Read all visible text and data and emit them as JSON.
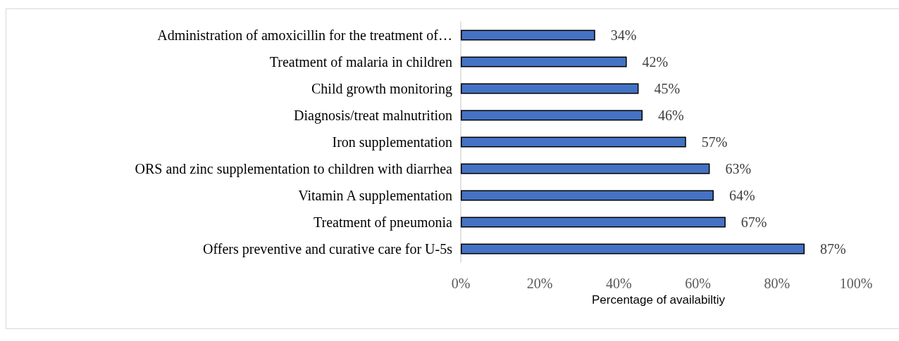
{
  "chart_data": {
    "type": "bar",
    "orientation": "horizontal",
    "categories": [
      "Administration of amoxicillin for the treatment of…",
      "Treatment of malaria in children",
      "Child growth monitoring",
      "Diagnosis/treat malnutrition",
      "Iron supplementation",
      "ORS and zinc supplementation to children with diarrhea",
      "Vitamin A supplementation",
      "Treatment of pneumonia",
      "Offers preventive and curative care for U-5s"
    ],
    "values": [
      34,
      42,
      45,
      46,
      57,
      63,
      64,
      67,
      87
    ],
    "color": "#4472c4",
    "value_labels": [
      "34%",
      "42%",
      "45%",
      "46%",
      "57%",
      "63%",
      "64%",
      "67%",
      "87%"
    ],
    "xlabel": "Percentage of availabiltiy",
    "xlim": [
      0,
      100
    ],
    "xticks": [
      {
        "value": 0,
        "label": "0%"
      },
      {
        "value": 20,
        "label": "20%"
      },
      {
        "value": 40,
        "label": "40%"
      },
      {
        "value": 60,
        "label": "60%"
      },
      {
        "value": 80,
        "label": "80%"
      },
      {
        "value": 100,
        "label": "100%"
      }
    ]
  }
}
